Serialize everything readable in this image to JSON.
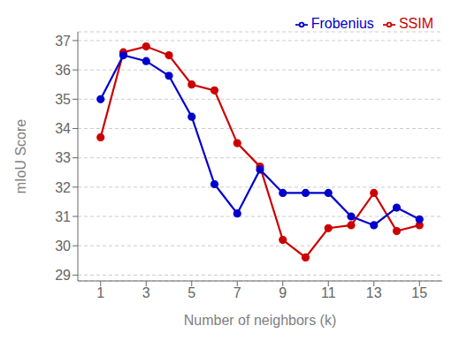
{
  "chart_data": {
    "type": "line",
    "xlabel": "Number of neighbors (k)",
    "ylabel": "mIoU Score",
    "x": [
      1,
      2,
      3,
      4,
      5,
      6,
      7,
      8,
      9,
      10,
      11,
      12,
      13,
      14,
      15
    ],
    "series": [
      {
        "name": "SSIM",
        "color": "#cc0000",
        "marker": "circle",
        "values": [
          33.7,
          36.6,
          36.8,
          36.5,
          35.5,
          35.3,
          33.5,
          32.7,
          30.2,
          29.6,
          30.6,
          30.7,
          31.8,
          30.5,
          30.7
        ]
      },
      {
        "name": "Frobenius",
        "color": "#0000cc",
        "marker": "circle",
        "values": [
          35.0,
          36.5,
          36.3,
          35.8,
          34.4,
          32.1,
          31.1,
          32.6,
          31.8,
          31.8,
          31.8,
          31.0,
          30.7,
          31.3,
          30.9
        ]
      }
    ],
    "xlim": [
      0,
      16
    ],
    "xticks": [
      1,
      3,
      5,
      7,
      9,
      11,
      13,
      15
    ],
    "ylim": [
      28.8,
      37.3
    ],
    "yticks": [
      29,
      30,
      31,
      32,
      33,
      34,
      35,
      36,
      37
    ],
    "grid": true,
    "legend": "upper right"
  }
}
